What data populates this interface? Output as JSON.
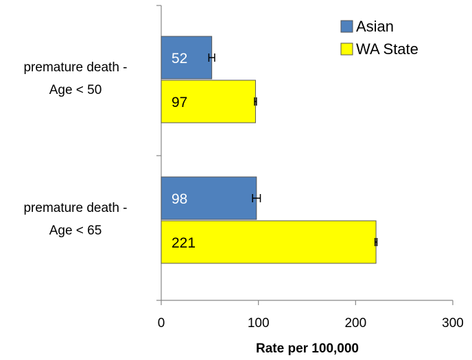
{
  "chart_data": {
    "type": "bar",
    "orientation": "horizontal",
    "categories": [
      [
        "premature death -",
        "Age < 50"
      ],
      [
        "premature death -",
        "Age < 65"
      ]
    ],
    "series": [
      {
        "name": "Asian",
        "values": [
          52,
          98
        ],
        "error": [
          3,
          4
        ],
        "color": "#4F81BD",
        "label_color": "#ffffff"
      },
      {
        "name": "WA State",
        "values": [
          97,
          221
        ],
        "error": [
          1,
          1
        ],
        "color": "#FFFF00",
        "label_color": "#000000"
      }
    ],
    "data_labels": [
      [
        "52",
        "98"
      ],
      [
        "97",
        "221"
      ]
    ],
    "xlabel": "Rate per 100,000",
    "ylabel": "",
    "xlim": [
      0,
      300
    ],
    "xticks": [
      0,
      100,
      200,
      300
    ],
    "xtick_labels": [
      "0",
      "100",
      "200",
      "300"
    ],
    "grid": false,
    "legend_position": "top-right",
    "error_bars": true
  }
}
